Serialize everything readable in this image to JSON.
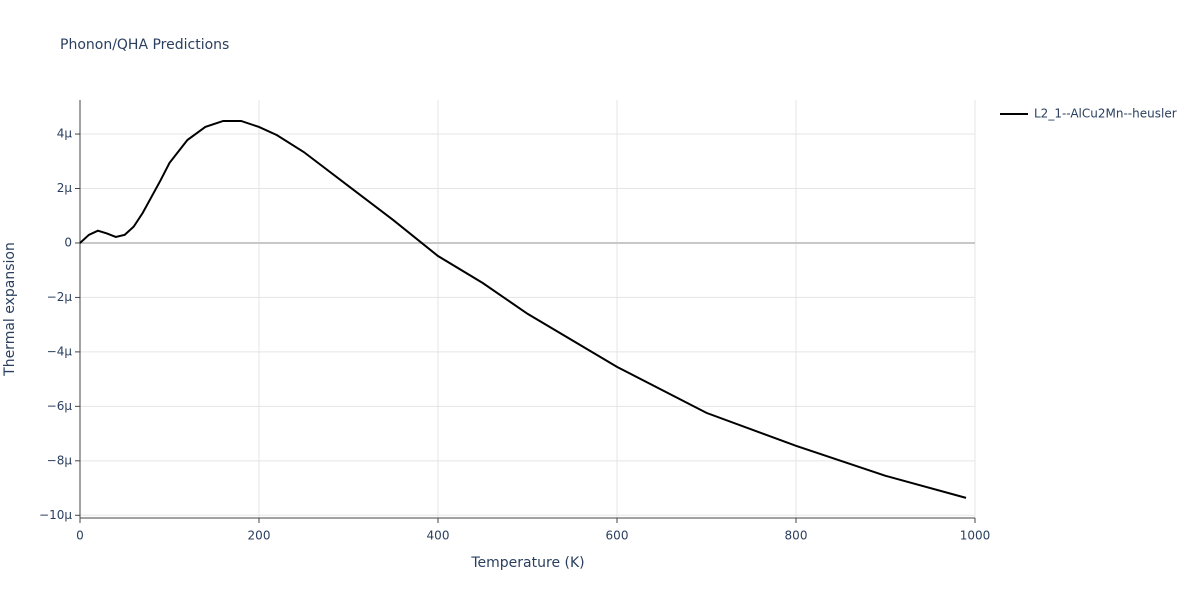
{
  "chart_data": {
    "type": "line",
    "title": "Phonon/QHA Predictions",
    "x_label": "Temperature (K)",
    "y_label": "Thermal expansion",
    "x": [
      0,
      10,
      20,
      30,
      40,
      50,
      60,
      70,
      80,
      90,
      100,
      120,
      140,
      160,
      180,
      200,
      220,
      250,
      300,
      350,
      400,
      450,
      500,
      600,
      700,
      800,
      900,
      990
    ],
    "series": [
      {
        "name": "L2_1--AlCu2Mn--heusler",
        "color": "#000000",
        "values": [
          0,
          3e-07,
          4.5e-07,
          3.5e-07,
          2.2e-07,
          3e-07,
          6e-07,
          1.1e-06,
          1.7e-06,
          2.3e-06,
          2.94e-06,
          3.78e-06,
          4.26e-06,
          4.48e-06,
          4.48e-06,
          4.26e-06,
          3.96e-06,
          3.34e-06,
          2.09e-06,
          8.4e-07,
          -4.8e-07,
          -1.47e-06,
          -2.6e-06,
          -4.55e-06,
          -6.24e-06,
          -7.45e-06,
          -8.55e-06,
          -9.36e-06
        ]
      }
    ],
    "xlim": [
      0,
      1000
    ],
    "xticks": [
      0,
      200,
      400,
      600,
      800,
      1000
    ],
    "ylim": [
      -1.01e-05,
      5.25e-06
    ],
    "yticks": [
      {
        "value": -1e-05,
        "label": "−10μ"
      },
      {
        "value": -8e-06,
        "label": "−8μ"
      },
      {
        "value": -6e-06,
        "label": "−6μ"
      },
      {
        "value": -4e-06,
        "label": "−4μ"
      },
      {
        "value": -2e-06,
        "label": "−2μ"
      },
      {
        "value": 0,
        "label": "0"
      },
      {
        "value": 2e-06,
        "label": "2μ"
      },
      {
        "value": 4e-06,
        "label": "4μ"
      }
    ],
    "grid": true,
    "legend": "right"
  }
}
